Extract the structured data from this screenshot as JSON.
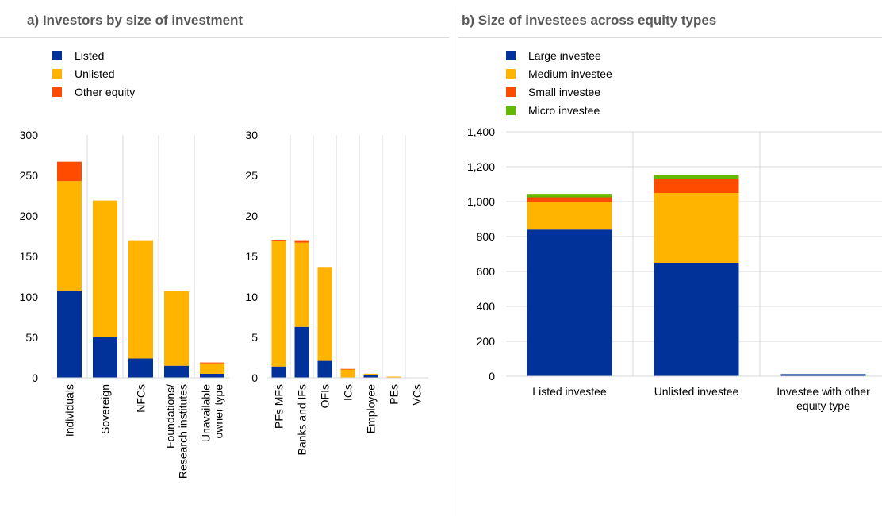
{
  "panel_a": {
    "title": "a) Investors by size of investment"
  },
  "panel_b": {
    "title": "b) Size of investees across equity types"
  },
  "colors": {
    "Listed": "#003299",
    "Unlisted": "#ffb400",
    "Other equity": "#ff4b00",
    "Large investee": "#003299",
    "Medium investee": "#ffb400",
    "Small investee": "#ff4b00",
    "Micro investee": "#65b800",
    "grid": "#d9d9d9"
  },
  "chart_data": [
    {
      "type": "bar",
      "stacked": true,
      "categories": [
        "Individuals",
        "Sovereign",
        "NFCs",
        "Foundations/ Research institutes",
        "Unavailable owner type"
      ],
      "series": [
        {
          "name": "Listed",
          "values": [
            108,
            50,
            24,
            15,
            5
          ]
        },
        {
          "name": "Unlisted",
          "values": [
            135,
            169,
            146,
            92,
            13
          ]
        },
        {
          "name": "Other equity",
          "values": [
            24,
            0,
            0,
            0,
            1
          ]
        }
      ],
      "ylim": [
        0,
        300
      ],
      "yticks": [
        "0",
        "50",
        "100",
        "150",
        "200",
        "250",
        "300"
      ],
      "legend": "top-left",
      "grid": "vertical separators"
    },
    {
      "type": "bar",
      "stacked": true,
      "categories": [
        "PFs MFs",
        "Banks and IFs",
        "OFIs",
        "ICs",
        "Employee",
        "PEs",
        "VCs"
      ],
      "series": [
        {
          "name": "Listed",
          "values": [
            1.4,
            6.3,
            2.1,
            0.05,
            0.3,
            0,
            0
          ]
        },
        {
          "name": "Unlisted",
          "values": [
            15.5,
            10.4,
            11.6,
            1.0,
            0.2,
            0.15,
            0
          ]
        },
        {
          "name": "Other equity",
          "values": [
            0.15,
            0.3,
            0,
            0.05,
            0,
            0,
            0
          ]
        }
      ],
      "ylim": [
        0,
        30
      ],
      "yticks": [
        "0",
        "5",
        "10",
        "15",
        "20",
        "25",
        "30"
      ],
      "grid": "vertical separators"
    },
    {
      "type": "bar",
      "stacked": true,
      "categories": [
        "Listed investee",
        "Unlisted investee",
        "Investee with other equity type"
      ],
      "series": [
        {
          "name": "Large investee",
          "values": [
            840,
            650,
            12
          ]
        },
        {
          "name": "Medium investee",
          "values": [
            160,
            400,
            0
          ]
        },
        {
          "name": "Small investee",
          "values": [
            25,
            80,
            0
          ]
        },
        {
          "name": "Micro investee",
          "values": [
            15,
            20,
            0
          ]
        }
      ],
      "ylim": [
        0,
        1400
      ],
      "yticks": [
        "0",
        "200",
        "400",
        "600",
        "800",
        "1,000",
        "1,200",
        "1,400"
      ],
      "legend": "top-left",
      "grid": "horizontal and vertical"
    }
  ]
}
